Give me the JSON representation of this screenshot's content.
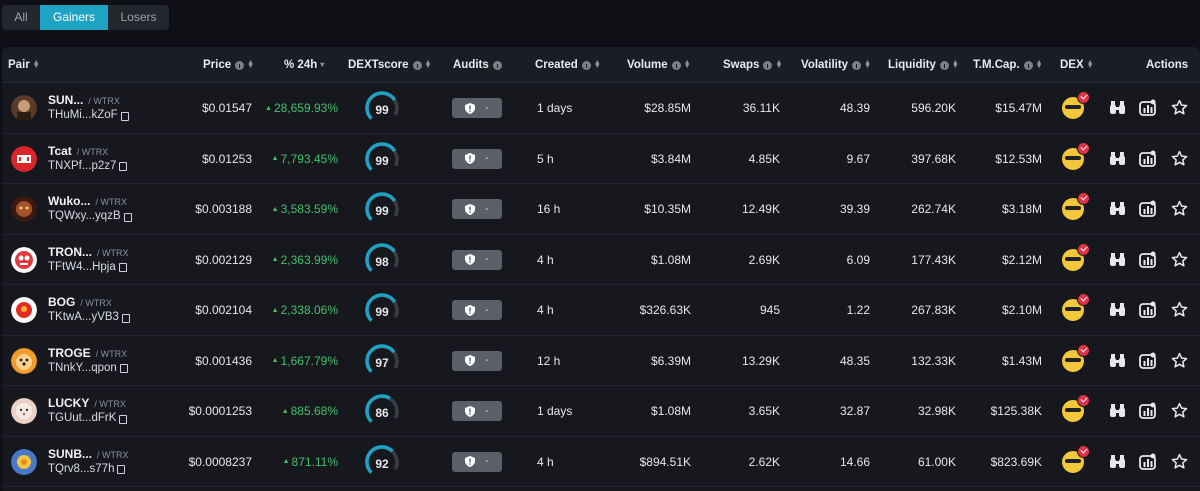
{
  "tabs": [
    {
      "label": "All",
      "active": false
    },
    {
      "label": "Gainers",
      "active": true
    },
    {
      "label": "Losers",
      "active": false
    }
  ],
  "columns": {
    "pair": "Pair",
    "price": "Price",
    "change": "% 24h",
    "dextscore": "DEXTscore",
    "audits": "Audits",
    "created": "Created",
    "volume": "Volume",
    "swaps": "Swaps",
    "volatility": "Volatility",
    "liquidity": "Liquidity",
    "mcap": "T.M.Cap.",
    "dex": "DEX",
    "actions": "Actions"
  },
  "rows": [
    {
      "symbol": "SUN...",
      "quote": "/ WTRX",
      "address": "THuMi...kZoF",
      "price": "$0.01547",
      "change": "28,659.93%",
      "score": 99,
      "audit": "-",
      "created": "1 days",
      "volume": "$28.85M",
      "swaps": "36.11K",
      "volatility": "48.39",
      "liquidity": "596.20K",
      "mcap": "$15.47M",
      "avatar": "sun-token"
    },
    {
      "symbol": "Tcat",
      "quote": "/ WTRX",
      "address": "TNXPf...p2z7",
      "price": "$0.01253",
      "change": "7,793.45%",
      "score": 99,
      "audit": "-",
      "created": "5 h",
      "volume": "$3.84M",
      "swaps": "4.85K",
      "volatility": "9.67",
      "liquidity": "397.68K",
      "mcap": "$12.53M",
      "avatar": "tcat-token"
    },
    {
      "symbol": "Wuko...",
      "quote": "/ WTRX",
      "address": "TQWxy...yqzB",
      "price": "$0.003188",
      "change": "3,583.59%",
      "score": 99,
      "audit": "-",
      "created": "16 h",
      "volume": "$10.35M",
      "swaps": "12.49K",
      "volatility": "39.39",
      "liquidity": "262.74K",
      "mcap": "$3.18M",
      "avatar": "wuko-token"
    },
    {
      "symbol": "TRON...",
      "quote": "/ WTRX",
      "address": "TFtW4...Hpja",
      "price": "$0.002129",
      "change": "2,363.99%",
      "score": 98,
      "audit": "-",
      "created": "4 h",
      "volume": "$1.08M",
      "swaps": "2.69K",
      "volatility": "6.09",
      "liquidity": "177.43K",
      "mcap": "$2.12M",
      "avatar": "tron-token"
    },
    {
      "symbol": "BOG",
      "quote": "/ WTRX",
      "address": "TKtwA...yVB3",
      "price": "$0.002104",
      "change": "2,338.06%",
      "score": 99,
      "audit": "-",
      "created": "4 h",
      "volume": "$326.63K",
      "swaps": "945",
      "volatility": "1.22",
      "liquidity": "267.83K",
      "mcap": "$2.10M",
      "avatar": "bog-token"
    },
    {
      "symbol": "TROGE",
      "quote": "/ WTRX",
      "address": "TNnkY...qpon",
      "price": "$0.001436",
      "change": "1,667.79%",
      "score": 97,
      "audit": "-",
      "created": "12 h",
      "volume": "$6.39M",
      "swaps": "13.29K",
      "volatility": "48.35",
      "liquidity": "132.33K",
      "mcap": "$1.43M",
      "avatar": "troge-token"
    },
    {
      "symbol": "LUCKY",
      "quote": "/ WTRX",
      "address": "TGUut...dFrK",
      "price": "$0.0001253",
      "change": "885.68%",
      "score": 86,
      "audit": "-",
      "created": "1 days",
      "volume": "$1.08M",
      "swaps": "3.65K",
      "volatility": "32.87",
      "liquidity": "32.98K",
      "mcap": "$125.38K",
      "avatar": "lucky-token"
    },
    {
      "symbol": "SUNB...",
      "quote": "/ WTRX",
      "address": "TQrv8...s77h",
      "price": "$0.0008237",
      "change": "871.11%",
      "score": 92,
      "audit": "-",
      "created": "4 h",
      "volume": "$894.51K",
      "swaps": "2.62K",
      "volatility": "14.66",
      "liquidity": "61.00K",
      "mcap": "$823.69K",
      "avatar": "sunb-token"
    }
  ],
  "colors": {
    "accent": "#1fa3c4",
    "positive": "#45c069",
    "gauge_track": "#3a3d46"
  },
  "icons": {
    "dex": "sunswap-dex-icon",
    "verified": "verified-badge-icon",
    "binoculars": "binoculars-icon",
    "chart": "chart-icon",
    "star": "star-icon",
    "shield": "shield-icon",
    "copy": "copy-icon",
    "info": "info-icon"
  }
}
